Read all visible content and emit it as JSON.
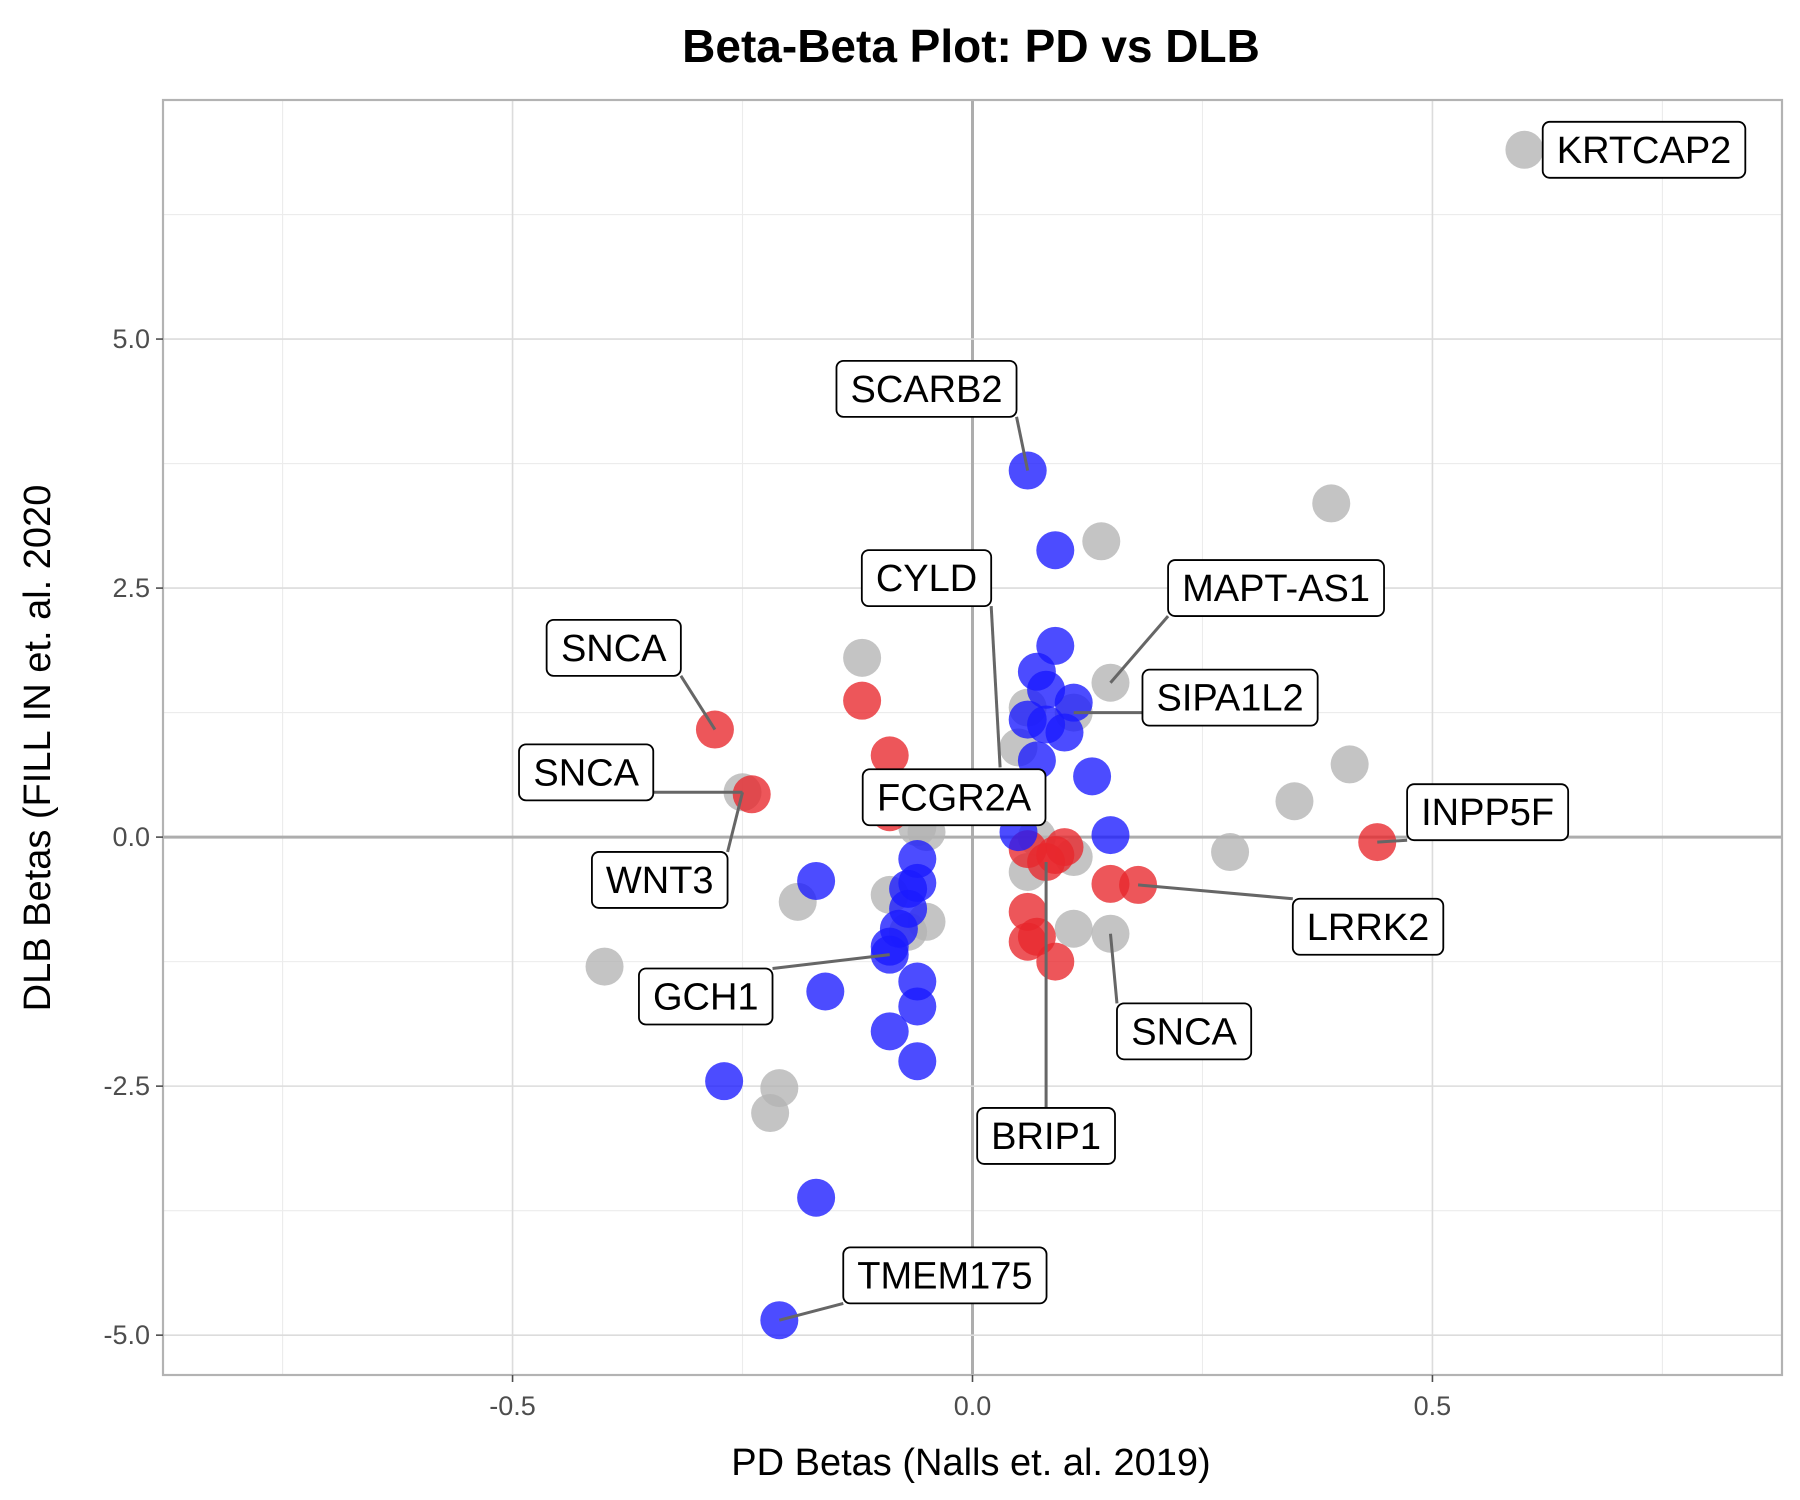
{
  "chart_data": {
    "type": "scatter",
    "title": "Beta-Beta Plot: PD vs DLB",
    "xlabel": "PD Betas (Nalls et. al. 2019)",
    "ylabel": "DLB Betas (FILL IN et. al. 2020",
    "xlim": [
      -0.88,
      0.88
    ],
    "ylim": [
      -5.4,
      7.4
    ],
    "x_ticks": [
      -0.5,
      0.0,
      0.5
    ],
    "x_tick_labels": [
      "-0.5",
      "0.0",
      "0.5"
    ],
    "y_ticks": [
      -5.0,
      -2.5,
      0.0,
      2.5,
      5.0
    ],
    "y_tick_labels": [
      "-5.0",
      "-2.5",
      "0.0",
      "2.5",
      "5.0"
    ],
    "grid": true,
    "legend": "none",
    "colors": {
      "grey": "#b3b3b3",
      "red": "#e8272b",
      "blue": "#1a1aff"
    },
    "points": [
      {
        "x": 0.6,
        "y": 6.9,
        "c": "grey"
      },
      {
        "x": 0.39,
        "y": 3.35,
        "c": "grey"
      },
      {
        "x": 0.14,
        "y": 2.97,
        "c": "grey"
      },
      {
        "x": 0.41,
        "y": 0.73,
        "c": "grey"
      },
      {
        "x": 0.35,
        "y": 0.36,
        "c": "grey"
      },
      {
        "x": 0.28,
        "y": -0.15,
        "c": "grey"
      },
      {
        "x": -0.12,
        "y": 1.8,
        "c": "grey"
      },
      {
        "x": -0.25,
        "y": 0.45,
        "c": "grey"
      },
      {
        "x": -0.19,
        "y": -0.65,
        "c": "grey"
      },
      {
        "x": -0.4,
        "y": -1.3,
        "c": "grey"
      },
      {
        "x": -0.21,
        "y": -2.52,
        "c": "grey"
      },
      {
        "x": -0.22,
        "y": -2.77,
        "c": "grey"
      },
      {
        "x": -0.09,
        "y": -0.58,
        "c": "grey"
      },
      {
        "x": -0.05,
        "y": -0.85,
        "c": "grey"
      },
      {
        "x": -0.07,
        "y": -0.95,
        "c": "grey"
      },
      {
        "x": -0.06,
        "y": 0.1,
        "c": "grey"
      },
      {
        "x": -0.05,
        "y": 0.05,
        "c": "grey"
      },
      {
        "x": 0.15,
        "y": 1.55,
        "c": "grey"
      },
      {
        "x": 0.11,
        "y": 1.25,
        "c": "grey"
      },
      {
        "x": 0.06,
        "y": 1.3,
        "c": "grey"
      },
      {
        "x": 0.05,
        "y": 0.9,
        "c": "grey"
      },
      {
        "x": 0.11,
        "y": -0.2,
        "c": "grey"
      },
      {
        "x": 0.06,
        "y": -0.35,
        "c": "grey"
      },
      {
        "x": 0.11,
        "y": -0.92,
        "c": "grey"
      },
      {
        "x": 0.15,
        "y": -0.97,
        "c": "grey"
      },
      {
        "x": 0.07,
        "y": 0.0,
        "c": "grey"
      },
      {
        "x": -0.28,
        "y": 1.08,
        "c": "red"
      },
      {
        "x": -0.24,
        "y": 0.43,
        "c": "red"
      },
      {
        "x": -0.12,
        "y": 1.37,
        "c": "red"
      },
      {
        "x": -0.09,
        "y": 0.82,
        "c": "red"
      },
      {
        "x": -0.09,
        "y": 0.25,
        "c": "red"
      },
      {
        "x": 0.44,
        "y": -0.05,
        "c": "red"
      },
      {
        "x": 0.18,
        "y": -0.48,
        "c": "red"
      },
      {
        "x": 0.15,
        "y": -0.47,
        "c": "red"
      },
      {
        "x": 0.1,
        "y": -0.1,
        "c": "red"
      },
      {
        "x": 0.08,
        "y": -0.25,
        "c": "red"
      },
      {
        "x": 0.06,
        "y": -0.12,
        "c": "red"
      },
      {
        "x": 0.06,
        "y": -0.75,
        "c": "red"
      },
      {
        "x": 0.06,
        "y": -1.05,
        "c": "red"
      },
      {
        "x": 0.07,
        "y": -1.0,
        "c": "red"
      },
      {
        "x": 0.09,
        "y": -1.25,
        "c": "red"
      },
      {
        "x": 0.09,
        "y": -0.18,
        "c": "red"
      },
      {
        "x": 0.06,
        "y": 3.68,
        "c": "blue"
      },
      {
        "x": 0.09,
        "y": 2.88,
        "c": "blue"
      },
      {
        "x": 0.09,
        "y": 1.92,
        "c": "blue"
      },
      {
        "x": 0.07,
        "y": 1.66,
        "c": "blue"
      },
      {
        "x": 0.08,
        "y": 1.48,
        "c": "blue"
      },
      {
        "x": 0.11,
        "y": 1.35,
        "c": "blue"
      },
      {
        "x": 0.06,
        "y": 1.18,
        "c": "blue"
      },
      {
        "x": 0.08,
        "y": 1.13,
        "c": "blue"
      },
      {
        "x": 0.1,
        "y": 1.05,
        "c": "blue"
      },
      {
        "x": 0.07,
        "y": 0.77,
        "c": "blue"
      },
      {
        "x": 0.13,
        "y": 0.61,
        "c": "blue"
      },
      {
        "x": 0.15,
        "y": 0.02,
        "c": "blue"
      },
      {
        "x": 0.05,
        "y": 0.05,
        "c": "blue"
      },
      {
        "x": -0.06,
        "y": -0.22,
        "c": "blue"
      },
      {
        "x": -0.06,
        "y": -0.46,
        "c": "blue"
      },
      {
        "x": -0.07,
        "y": -0.52,
        "c": "blue"
      },
      {
        "x": -0.17,
        "y": -0.44,
        "c": "blue"
      },
      {
        "x": -0.07,
        "y": -0.72,
        "c": "blue"
      },
      {
        "x": -0.08,
        "y": -0.92,
        "c": "blue"
      },
      {
        "x": -0.09,
        "y": -1.1,
        "c": "blue"
      },
      {
        "x": -0.09,
        "y": -1.18,
        "c": "blue"
      },
      {
        "x": -0.16,
        "y": -1.55,
        "c": "blue"
      },
      {
        "x": -0.06,
        "y": -1.45,
        "c": "blue"
      },
      {
        "x": -0.06,
        "y": -1.7,
        "c": "blue"
      },
      {
        "x": -0.09,
        "y": -1.95,
        "c": "blue"
      },
      {
        "x": -0.06,
        "y": -2.25,
        "c": "blue"
      },
      {
        "x": -0.27,
        "y": -2.45,
        "c": "blue"
      },
      {
        "x": -0.17,
        "y": -3.62,
        "c": "blue"
      },
      {
        "x": -0.21,
        "y": -4.85,
        "c": "blue"
      }
    ],
    "annotations": [
      {
        "text": "KRTCAP2",
        "x": 0.6,
        "y": 6.9,
        "lx": 0.73,
        "ly": 6.9
      },
      {
        "text": "SCARB2",
        "x": 0.06,
        "y": 3.68,
        "lx": -0.05,
        "ly": 4.5
      },
      {
        "text": "CYLD",
        "x": 0.03,
        "y": 0.7,
        "lx": -0.05,
        "ly": 2.6
      },
      {
        "text": "MAPT-AS1",
        "x": 0.15,
        "y": 1.55,
        "lx": 0.33,
        "ly": 2.5
      },
      {
        "text": "SIPA1L2",
        "x": 0.11,
        "y": 1.25,
        "lx": 0.28,
        "ly": 1.4
      },
      {
        "text": "SNCA",
        "x": -0.28,
        "y": 1.08,
        "lx": -0.39,
        "ly": 1.9
      },
      {
        "text": "SNCA",
        "x": -0.25,
        "y": 0.45,
        "lx": -0.42,
        "ly": 0.65
      },
      {
        "text": "WNT3",
        "x": -0.25,
        "y": 0.45,
        "lx": -0.34,
        "ly": -0.43
      },
      {
        "text": "FCGR2A",
        "x": -0.02,
        "y": 0.1,
        "lx": -0.02,
        "ly": 0.4
      },
      {
        "text": "INPP5F",
        "x": 0.44,
        "y": -0.05,
        "lx": 0.56,
        "ly": 0.25
      },
      {
        "text": "LRRK2",
        "x": 0.18,
        "y": -0.48,
        "lx": 0.43,
        "ly": -0.9
      },
      {
        "text": "SNCA",
        "x": 0.15,
        "y": -0.97,
        "lx": 0.23,
        "ly": -1.95
      },
      {
        "text": "GCH1",
        "x": -0.09,
        "y": -1.18,
        "lx": -0.29,
        "ly": -1.6
      },
      {
        "text": "BRIP1",
        "x": 0.08,
        "y": -0.25,
        "lx": 0.08,
        "ly": -3.0
      },
      {
        "text": "TMEM175",
        "x": -0.21,
        "y": -4.85,
        "lx": -0.03,
        "ly": -4.4
      }
    ]
  }
}
